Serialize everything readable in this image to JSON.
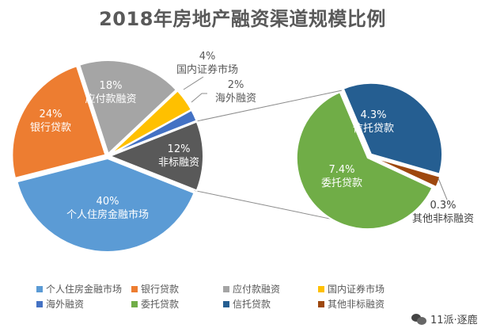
{
  "title": "2018年房地产融资渠道规模比例",
  "chart_data": {
    "type": "pie",
    "subtype": "pie-of-pie",
    "title": "2018年房地产融资渠道规模比例",
    "primary": [
      {
        "name": "个人住房金融市场",
        "value": 40,
        "label": "40%",
        "color": "#5B9BD5"
      },
      {
        "name": "银行贷款",
        "value": 24,
        "label": "24%",
        "color": "#ED7D31"
      },
      {
        "name": "应付款融资",
        "value": 18,
        "label": "18%",
        "color": "#A5A5A5"
      },
      {
        "name": "国内证券市场",
        "value": 4,
        "label": "4%",
        "color": "#FFC000"
      },
      {
        "name": "海外融资",
        "value": 2,
        "label": "2%",
        "color": "#4472C4"
      },
      {
        "name": "非标融资",
        "value": 12,
        "label": "12%",
        "color": "#595959"
      }
    ],
    "secondary": [
      {
        "name": "委托贷款",
        "value": 7.4,
        "label": "7.4%",
        "color": "#70AD47"
      },
      {
        "name": "信托贷款",
        "value": 4.3,
        "label": "4.3%",
        "color": "#255E91"
      },
      {
        "name": "其他非标融资",
        "value": 0.3,
        "label": "0.3%",
        "color": "#9E480E"
      }
    ],
    "legend": [
      {
        "name": "个人住房金融市场",
        "color": "#5B9BD5"
      },
      {
        "name": "银行贷款",
        "color": "#ED7D31"
      },
      {
        "name": "应付款融资",
        "color": "#A5A5A5"
      },
      {
        "name": "国内证券市场",
        "color": "#FFC000"
      },
      {
        "name": "海外融资",
        "color": "#4472C4"
      },
      {
        "name": "委托贷款",
        "color": "#70AD47"
      },
      {
        "name": "信托贷款",
        "color": "#255E91"
      },
      {
        "name": "其他非标融资",
        "color": "#9E480E"
      }
    ],
    "legend_position": "bottom"
  },
  "watermark": "11派·逐鹿"
}
